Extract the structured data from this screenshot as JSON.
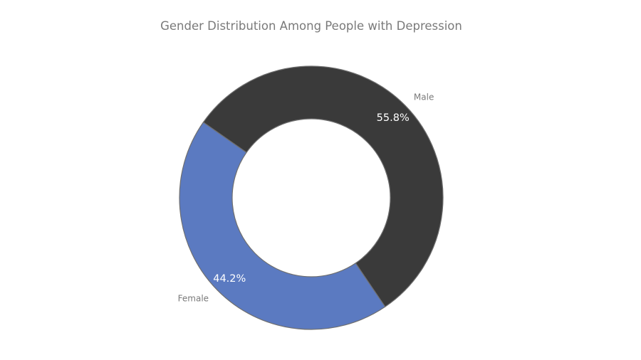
{
  "chart_data": {
    "type": "pie",
    "style": "donut",
    "title": "Gender Distribution Among People with Depression",
    "start_angle_deg": 145,
    "direction": "clockwise",
    "slices": [
      {
        "label": "Male",
        "value": 55.8,
        "display": "55.8%",
        "color": "#3a3a3a"
      },
      {
        "label": "Female",
        "value": 44.2,
        "display": "44.2%",
        "color": "#5b7ac1"
      }
    ],
    "legend": "none"
  }
}
